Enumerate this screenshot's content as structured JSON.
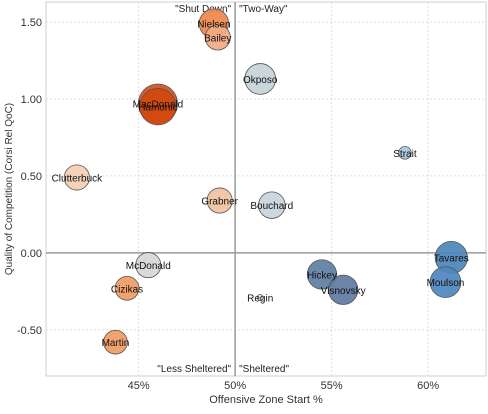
{
  "chart_data": {
    "type": "scatter",
    "xlabel": "Offensive Zone Start %",
    "ylabel": "Quality of Competition (Corsi Rel QoC)",
    "xlim": [
      40.2,
      63.0
    ],
    "ylim": [
      -0.8,
      1.63
    ],
    "x_ticks": [
      {
        "value": 45,
        "label": "45%"
      },
      {
        "value": 50,
        "label": "50%"
      },
      {
        "value": 55,
        "label": "55%"
      },
      {
        "value": 60,
        "label": "60%"
      }
    ],
    "y_ticks": [
      {
        "value": 1.5,
        "label": "1.50"
      },
      {
        "value": 1.0,
        "label": "1.00"
      },
      {
        "value": 0.5,
        "label": "0.50"
      },
      {
        "value": 0.0,
        "label": "0.00"
      },
      {
        "value": -0.5,
        "label": "-0.50"
      }
    ],
    "grid": true,
    "reference_lines": {
      "x": 50,
      "y": 0
    },
    "quadrant_labels": {
      "top_left": "\"Shut Down\"",
      "top_right": "\"Two-Way\"",
      "bottom_left": "\"Less Sheltered\"",
      "bottom_right": "\"Sheltered\""
    },
    "points": [
      {
        "label": "Nielsen",
        "x": 48.9,
        "y": 1.49,
        "size": 1.05,
        "color": "#ee874a"
      },
      {
        "label": "Bailey",
        "x": 49.1,
        "y": 1.4,
        "size": 0.9,
        "color": "#f2ab83"
      },
      {
        "label": "Okposo",
        "x": 51.3,
        "y": 1.13,
        "size": 1.1,
        "color": "#c4d2d9"
      },
      {
        "label": "MacDonald",
        "x": 46.0,
        "y": 0.97,
        "size": 1.4,
        "color": "#d4501a"
      },
      {
        "label": "Hamonic",
        "x": 46.0,
        "y": 0.95,
        "size": 1.3,
        "color": "#d14810"
      },
      {
        "label": "Strait",
        "x": 58.8,
        "y": 0.65,
        "size": 0.45,
        "color": "#a8c8e0"
      },
      {
        "label": "Clutterbuck",
        "x": 41.8,
        "y": 0.49,
        "size": 0.9,
        "color": "#f4cdb3"
      },
      {
        "label": "Grabner",
        "x": 49.2,
        "y": 0.34,
        "size": 0.9,
        "color": "#f1c1a1"
      },
      {
        "label": "Bouchard",
        "x": 51.9,
        "y": 0.31,
        "size": 0.95,
        "color": "#c8d5dc"
      },
      {
        "label": "McDonald",
        "x": 45.5,
        "y": -0.08,
        "size": 0.9,
        "color": "#d6d6d6"
      },
      {
        "label": "Hickey",
        "x": 54.5,
        "y": -0.14,
        "size": 1.05,
        "color": "#5e7ea3"
      },
      {
        "label": "Tavares",
        "x": 61.2,
        "y": -0.03,
        "size": 1.15,
        "color": "#4b84ba"
      },
      {
        "label": "Moulson",
        "x": 60.9,
        "y": -0.19,
        "size": 1.1,
        "color": "#4e87bf"
      },
      {
        "label": "Visnovsky",
        "x": 55.6,
        "y": -0.24,
        "size": 1.05,
        "color": "#5f7aa0"
      },
      {
        "label": "Cizikas",
        "x": 44.4,
        "y": -0.23,
        "size": 0.85,
        "color": "#f09a62"
      },
      {
        "label": "Regin",
        "x": 51.3,
        "y": -0.29,
        "size": 0.2,
        "color": "#e8e8e8"
      },
      {
        "label": "Martin",
        "x": 43.8,
        "y": -0.58,
        "size": 0.85,
        "color": "#f09a62"
      }
    ]
  }
}
